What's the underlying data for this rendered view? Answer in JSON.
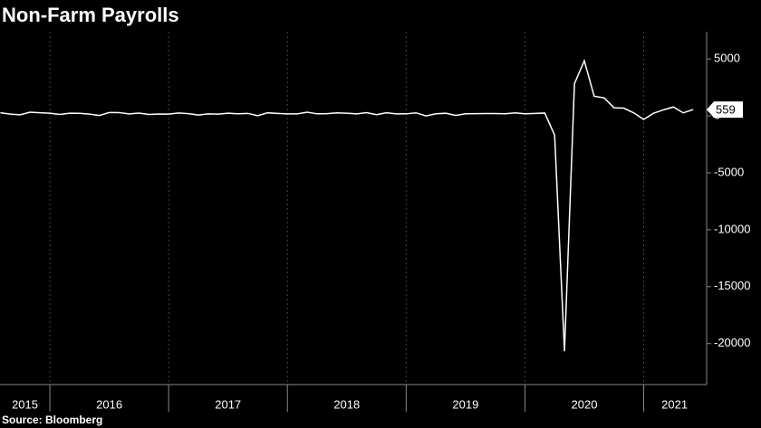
{
  "chart_data": {
    "type": "line",
    "title": "Non-Farm Payrolls",
    "source": "Source: Bloomberg",
    "x": [
      2015.583,
      2015.667,
      2015.75,
      2015.833,
      2015.917,
      2016.0,
      2016.083,
      2016.167,
      2016.25,
      2016.333,
      2016.417,
      2016.5,
      2016.583,
      2016.667,
      2016.75,
      2016.833,
      2016.917,
      2017.0,
      2017.083,
      2017.167,
      2017.25,
      2017.333,
      2017.417,
      2017.5,
      2017.583,
      2017.667,
      2017.75,
      2017.833,
      2017.917,
      2018.0,
      2018.083,
      2018.167,
      2018.25,
      2018.333,
      2018.417,
      2018.5,
      2018.583,
      2018.667,
      2018.75,
      2018.833,
      2018.917,
      2019.0,
      2019.083,
      2019.167,
      2019.25,
      2019.333,
      2019.417,
      2019.5,
      2019.583,
      2019.667,
      2019.75,
      2019.833,
      2019.917,
      2020.0,
      2020.083,
      2020.167,
      2020.25,
      2020.333,
      2020.417,
      2020.5,
      2020.583,
      2020.667,
      2020.75,
      2020.833,
      2020.917,
      2021.0,
      2021.083,
      2021.167,
      2021.25,
      2021.333,
      2021.417
    ],
    "series": [
      {
        "name": "Non-Farm Payrolls",
        "color": "#ffffff",
        "values": [
          277,
          157,
          100,
          321,
          272,
          239,
          126,
          237,
          225,
          153,
          43,
          297,
          291,
          176,
          249,
          124,
          164,
          155,
          259,
          195,
          73,
          175,
          155,
          239,
          190,
          221,
          18,
          271,
          216,
          175,
          176,
          324,
          182,
          196,
          270,
          235,
          173,
          282,
          108,
          277,
          176,
          182,
          269,
          1,
          189,
          231,
          45,
          182,
          194,
          207,
          208,
          185,
          261,
          184,
          214,
          251,
          -1683,
          -20679,
          2833,
          4846,
          1726,
          1583,
          716,
          680,
          264,
          -306,
          233,
          536,
          785,
          269,
          559
        ]
      }
    ],
    "last_value_label": "559",
    "xlim": [
      2015.58,
      2021.53
    ],
    "xticks": [
      {
        "value": 2015.79,
        "label": "2015"
      },
      {
        "value": 2016.5,
        "label": "2016"
      },
      {
        "value": 2017.5,
        "label": "2017"
      },
      {
        "value": 2018.5,
        "label": "2018"
      },
      {
        "value": 2019.5,
        "label": "2019"
      },
      {
        "value": 2020.5,
        "label": "2020"
      },
      {
        "value": 2021.26,
        "label": "2021"
      }
    ],
    "year_boundaries": [
      2016,
      2017,
      2018,
      2019,
      2020,
      2021
    ],
    "ylim": [
      -23600,
      7400
    ],
    "yticks": [
      5000,
      0,
      -5000,
      -10000,
      -15000,
      -20000
    ],
    "grid": true
  }
}
